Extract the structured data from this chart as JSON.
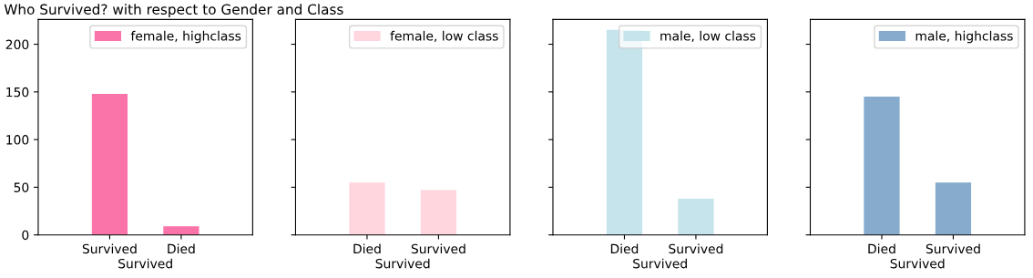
{
  "chart_data": [
    {
      "type": "bar",
      "title": "Who Survived? with respect to Gender and Class",
      "xlabel": "Survived",
      "categories": [
        "Survived",
        "Died"
      ],
      "series": [
        {
          "name": "female, highclass",
          "color": "#fb74a9",
          "values": [
            148,
            9
          ]
        }
      ],
      "ylim": [
        0,
        226
      ],
      "yticks": [
        0,
        50,
        100,
        150,
        200
      ],
      "legend": "top right",
      "grid": false
    },
    {
      "type": "bar",
      "xlabel": "Survived",
      "categories": [
        "Died",
        "Survived"
      ],
      "series": [
        {
          "name": "female, low class",
          "color": "#ffd5de",
          "values": [
            55,
            47
          ]
        }
      ],
      "ylim": [
        0,
        226
      ],
      "yticks": [
        0,
        50,
        100,
        150,
        200
      ],
      "tick_labels": "x",
      "legend": "top right",
      "grid": false
    },
    {
      "type": "bar",
      "xlabel": "Survived",
      "categories": [
        "Died",
        "Survived"
      ],
      "series": [
        {
          "name": "male, low class",
          "color": "#c6e4ec",
          "values": [
            215,
            38
          ]
        }
      ],
      "ylim": [
        0,
        226
      ],
      "yticks": [
        0,
        50,
        100,
        150,
        200
      ],
      "tick_labels": "x",
      "legend": "top right",
      "grid": false
    },
    {
      "type": "bar",
      "xlabel": "Survived",
      "categories": [
        "Died",
        "Survived"
      ],
      "series": [
        {
          "name": "male, highclass",
          "color": "#86abcd",
          "values": [
            145,
            55
          ]
        }
      ],
      "ylim": [
        0,
        226
      ],
      "yticks": [
        0,
        50,
        100,
        150,
        200
      ],
      "tick_labels": "x",
      "legend": "top right",
      "grid": false
    }
  ]
}
